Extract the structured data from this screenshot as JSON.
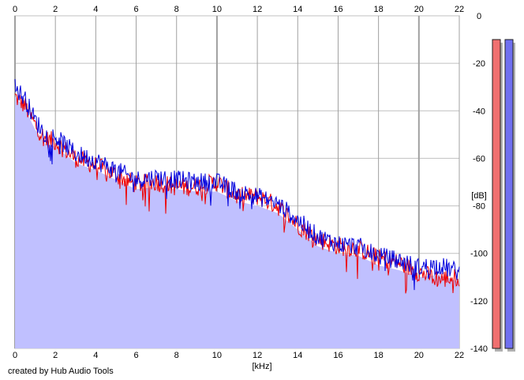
{
  "chart_data": {
    "type": "area",
    "title": "",
    "xlabel": "[kHz]",
    "ylabel": "[dB]",
    "xlim": [
      0,
      22
    ],
    "ylim": [
      -140,
      0
    ],
    "x_ticks": [
      0,
      2,
      4,
      6,
      8,
      10,
      12,
      14,
      16,
      18,
      20,
      22
    ],
    "y_ticks": [
      0,
      -20,
      -40,
      -60,
      -80,
      -100,
      -120,
      -140
    ],
    "grid": true,
    "legend": "none",
    "series": [
      {
        "color": "#ee0000",
        "x": [
          0,
          0.5,
          1,
          1.5,
          2,
          3,
          4,
          5,
          6,
          7,
          8,
          9,
          10,
          11,
          12,
          13,
          14,
          15,
          16,
          17,
          18,
          19,
          20,
          21,
          22
        ],
        "values": [
          -34,
          -38,
          -46,
          -52,
          -53,
          -60,
          -63,
          -67,
          -71,
          -70,
          -72,
          -72,
          -70,
          -76,
          -76,
          -80,
          -88,
          -94,
          -97,
          -98,
          -102,
          -104,
          -108,
          -111,
          -110
        ]
      },
      {
        "color": "#0000dd",
        "x": [
          0,
          0.5,
          1,
          1.5,
          2,
          3,
          4,
          5,
          6,
          7,
          8,
          9,
          10,
          11,
          12,
          13,
          14,
          15,
          16,
          17,
          18,
          19,
          20,
          21,
          22
        ],
        "values": [
          -30,
          -35,
          -44,
          -50,
          -51,
          -58,
          -61,
          -65,
          -69,
          -68,
          -69,
          -70,
          -70,
          -74,
          -76,
          -79,
          -86,
          -93,
          -96,
          -97,
          -101,
          -103,
          -106,
          -105,
          -108
        ]
      }
    ],
    "fill_color": "#c0c0ff",
    "level_meters": [
      {
        "color": "#f07070",
        "level_db": -10
      },
      {
        "color": "#7070f0",
        "level_db": -10
      }
    ]
  },
  "credit": "created by Hub Audio Tools"
}
